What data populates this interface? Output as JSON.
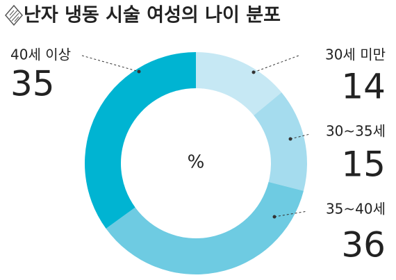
{
  "chart_data": {
    "type": "donut",
    "title": "난자 냉동 시술 여성의 나이 분포",
    "center_label": "%",
    "categories": [
      "30세 미만",
      "30~35세",
      "35~40세",
      "40세 이상"
    ],
    "values": [
      14,
      15,
      36,
      35
    ],
    "colors": [
      "#c6e8f4",
      "#a5dcee",
      "#6ecbe2",
      "#00b4d2"
    ],
    "value_color": "#00b4d2"
  }
}
